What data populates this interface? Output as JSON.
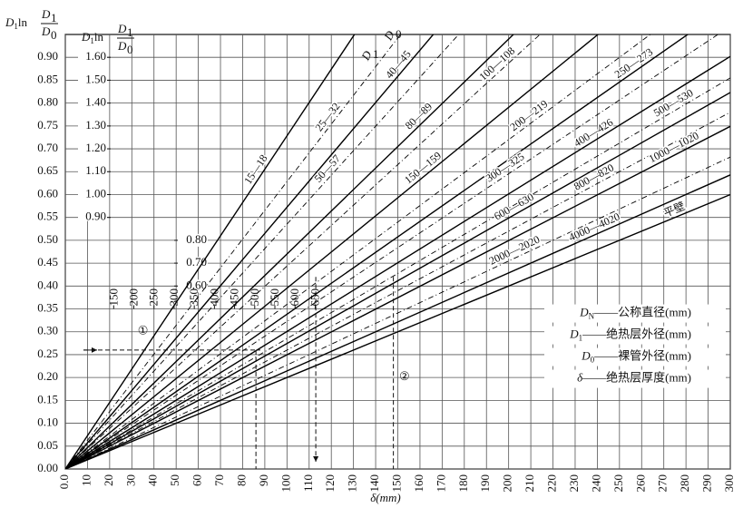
{
  "chart_data": {
    "type": "line",
    "y_label": {
      "pre": "D",
      "pre_sub": "1",
      "fn": "ln",
      "num": "D",
      "num_sub": "1",
      "den": "D",
      "den_sub": "0"
    },
    "y2_label": {
      "pre": "D",
      "pre_sub": "1",
      "fn": "ln",
      "num": "D",
      "num_sub": "1",
      "den": "D",
      "den_sub": "0"
    },
    "x_label": "δ(mm)",
    "label_header": {
      "d1": "D",
      "d1_sub": "1",
      "d0": "D",
      "d0_sub": "0"
    },
    "x": [
      0,
      300
    ],
    "xlim": [
      0,
      300
    ],
    "ylim": [
      0,
      0.95
    ],
    "grid": true,
    "xticks": [
      {
        "value": 0,
        "label": "0.0"
      },
      10,
      20,
      30,
      40,
      50,
      60,
      70,
      80,
      90,
      100,
      110,
      120,
      130,
      140,
      150,
      160,
      170,
      180,
      190,
      200,
      210,
      220,
      230,
      240,
      250,
      260,
      270,
      280,
      290,
      300
    ],
    "yticks": [
      {
        "value": 0,
        "label": "0.00"
      },
      {
        "value": 0.05,
        "label": "0.05"
      },
      {
        "value": 0.1,
        "label": "0.10"
      },
      {
        "value": 0.15,
        "label": "0.15"
      },
      {
        "value": 0.2,
        "label": "0.20"
      },
      {
        "value": 0.25,
        "label": "0.25"
      },
      {
        "value": 0.3,
        "label": "0.30"
      },
      {
        "value": 0.35,
        "label": "0.35"
      },
      {
        "value": 0.4,
        "label": "0.40"
      },
      {
        "value": 0.45,
        "label": "0.45"
      },
      {
        "value": 0.5,
        "label": "0.50"
      },
      {
        "value": 0.55,
        "label": "0.55"
      },
      {
        "value": 0.6,
        "label": "0.60"
      },
      {
        "value": 0.65,
        "label": "0.65"
      },
      {
        "value": 0.7,
        "label": "0.70"
      },
      {
        "value": 0.75,
        "label": "0.75"
      },
      {
        "value": 0.8,
        "label": "0.80"
      },
      {
        "value": 0.85,
        "label": "0.85"
      },
      {
        "value": 0.9,
        "label": "0.90"
      }
    ],
    "x2lim": [
      30,
      1680
    ],
    "x2ticks": [
      150,
      200,
      250,
      300,
      350,
      400,
      450,
      500,
      550,
      600,
      650
    ],
    "y2lim": [
      -0.2,
      1.7
    ],
    "y2ticks": [
      {
        "value": 1.6,
        "label": "1.60"
      },
      {
        "value": 1.5,
        "label": "1.50"
      },
      {
        "value": 1.4,
        "label": "1.40"
      },
      {
        "value": 1.3,
        "label": "1.30"
      },
      {
        "value": 1.2,
        "label": "1.20"
      },
      {
        "value": 1.1,
        "label": "1.10"
      },
      {
        "value": 1.0,
        "label": "1.00"
      },
      {
        "value": 0.9,
        "label": "0.90"
      },
      {
        "value": 0.8,
        "label": "0.80"
      },
      {
        "value": 0.7,
        "label": "0.70"
      },
      {
        "value": 0.6,
        "label": "0.60"
      }
    ],
    "series": [
      {
        "name": "15—18",
        "color": "#000000",
        "style": "solid",
        "values": [
          0,
          2.185
        ]
      },
      {
        "name": "25—32",
        "color": "#000000",
        "style": "dashed",
        "values": [
          0,
          1.885
        ]
      },
      {
        "name": "40—45",
        "color": "#000000",
        "style": "solid",
        "values": [
          0,
          1.717
        ]
      },
      {
        "name": "50—57",
        "color": "#000000",
        "style": "dashed",
        "values": [
          0,
          1.606
        ]
      },
      {
        "name": "80—89",
        "color": "#000000",
        "style": "solid",
        "values": [
          0,
          1.41
        ]
      },
      {
        "name": "100—108",
        "color": "#000000",
        "style": "dashed",
        "values": [
          0,
          1.331
        ]
      },
      {
        "name": "150—159",
        "color": "#000000",
        "style": "solid",
        "values": [
          0,
          1.186
        ]
      },
      {
        "name": "200—219",
        "color": "#000000",
        "style": "dashed",
        "values": [
          0,
          1.08
        ]
      },
      {
        "name": "250—273",
        "color": "#000000",
        "style": "solid",
        "values": [
          0,
          1.015
        ]
      },
      {
        "name": "300—325",
        "color": "#000000",
        "style": "dashed",
        "values": [
          0,
          0.968
        ]
      },
      {
        "name": "400—426",
        "color": "#000000",
        "style": "solid",
        "values": [
          0,
          0.902
        ]
      },
      {
        "name": "500—530",
        "color": "#000000",
        "style": "dashed",
        "values": [
          0,
          0.855
        ]
      },
      {
        "name": "600—630",
        "color": "#000000",
        "style": "solid",
        "values": [
          0,
          0.823
        ]
      },
      {
        "name": "800—820",
        "color": "#000000",
        "style": "dashed",
        "values": [
          0,
          0.78
        ]
      },
      {
        "name": "1000—1020",
        "color": "#000000",
        "style": "solid",
        "values": [
          0,
          0.749
        ]
      },
      {
        "name": "2000—2020",
        "color": "#000000",
        "style": "dashed",
        "values": [
          0,
          0.682
        ]
      },
      {
        "name": "4000—4020",
        "color": "#000000",
        "style": "solid",
        "values": [
          0,
          0.643
        ]
      },
      {
        "name": "平壁",
        "color": "#000000",
        "style": "solid",
        "values": [
          0,
          0.6
        ]
      }
    ],
    "notes": [
      {
        "symbol": "D",
        "sub": "N",
        "text": "——公称直径(mm)"
      },
      {
        "symbol": "D",
        "sub": "1",
        "text": "——绝热层外径(mm)"
      },
      {
        "symbol": "D",
        "sub": "0",
        "text": "——裸管外径(mm)"
      },
      {
        "symbol": "δ",
        "sub": "",
        "text": "——绝热层厚度(mm)"
      }
    ],
    "annotations": [
      "①",
      "②"
    ]
  }
}
